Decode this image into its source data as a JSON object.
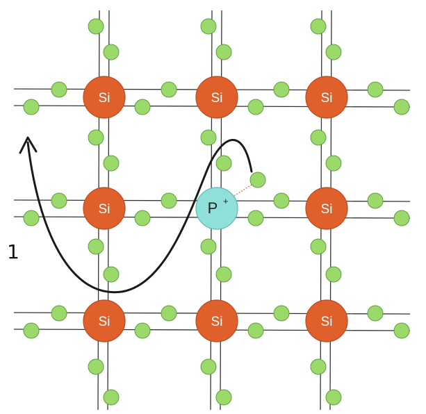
{
  "lattice": {
    "atoms": [
      {
        "id": "si-r1c1",
        "label": "Si",
        "kind": "silicon"
      },
      {
        "id": "si-r1c2",
        "label": "Si",
        "kind": "silicon"
      },
      {
        "id": "si-r1c3",
        "label": "Si",
        "kind": "silicon"
      },
      {
        "id": "si-r2c1",
        "label": "Si",
        "kind": "silicon"
      },
      {
        "id": "p-r2c2",
        "label": "P",
        "charge": "+",
        "kind": "phosphorus"
      },
      {
        "id": "si-r2c3",
        "label": "Si",
        "kind": "silicon"
      },
      {
        "id": "si-r3c1",
        "label": "Si",
        "kind": "silicon"
      },
      {
        "id": "si-r3c2",
        "label": "Si",
        "kind": "silicon"
      },
      {
        "id": "si-r3c3",
        "label": "Si",
        "kind": "silicon"
      }
    ]
  },
  "side_label": "1",
  "colors": {
    "silicon": "#e0602c",
    "phosphorus": "#8fe0d8",
    "electron": "#9ad96a",
    "electron_stroke": "#5e9e3a",
    "bond_line": "#333333",
    "path": "#1a1a1a"
  }
}
